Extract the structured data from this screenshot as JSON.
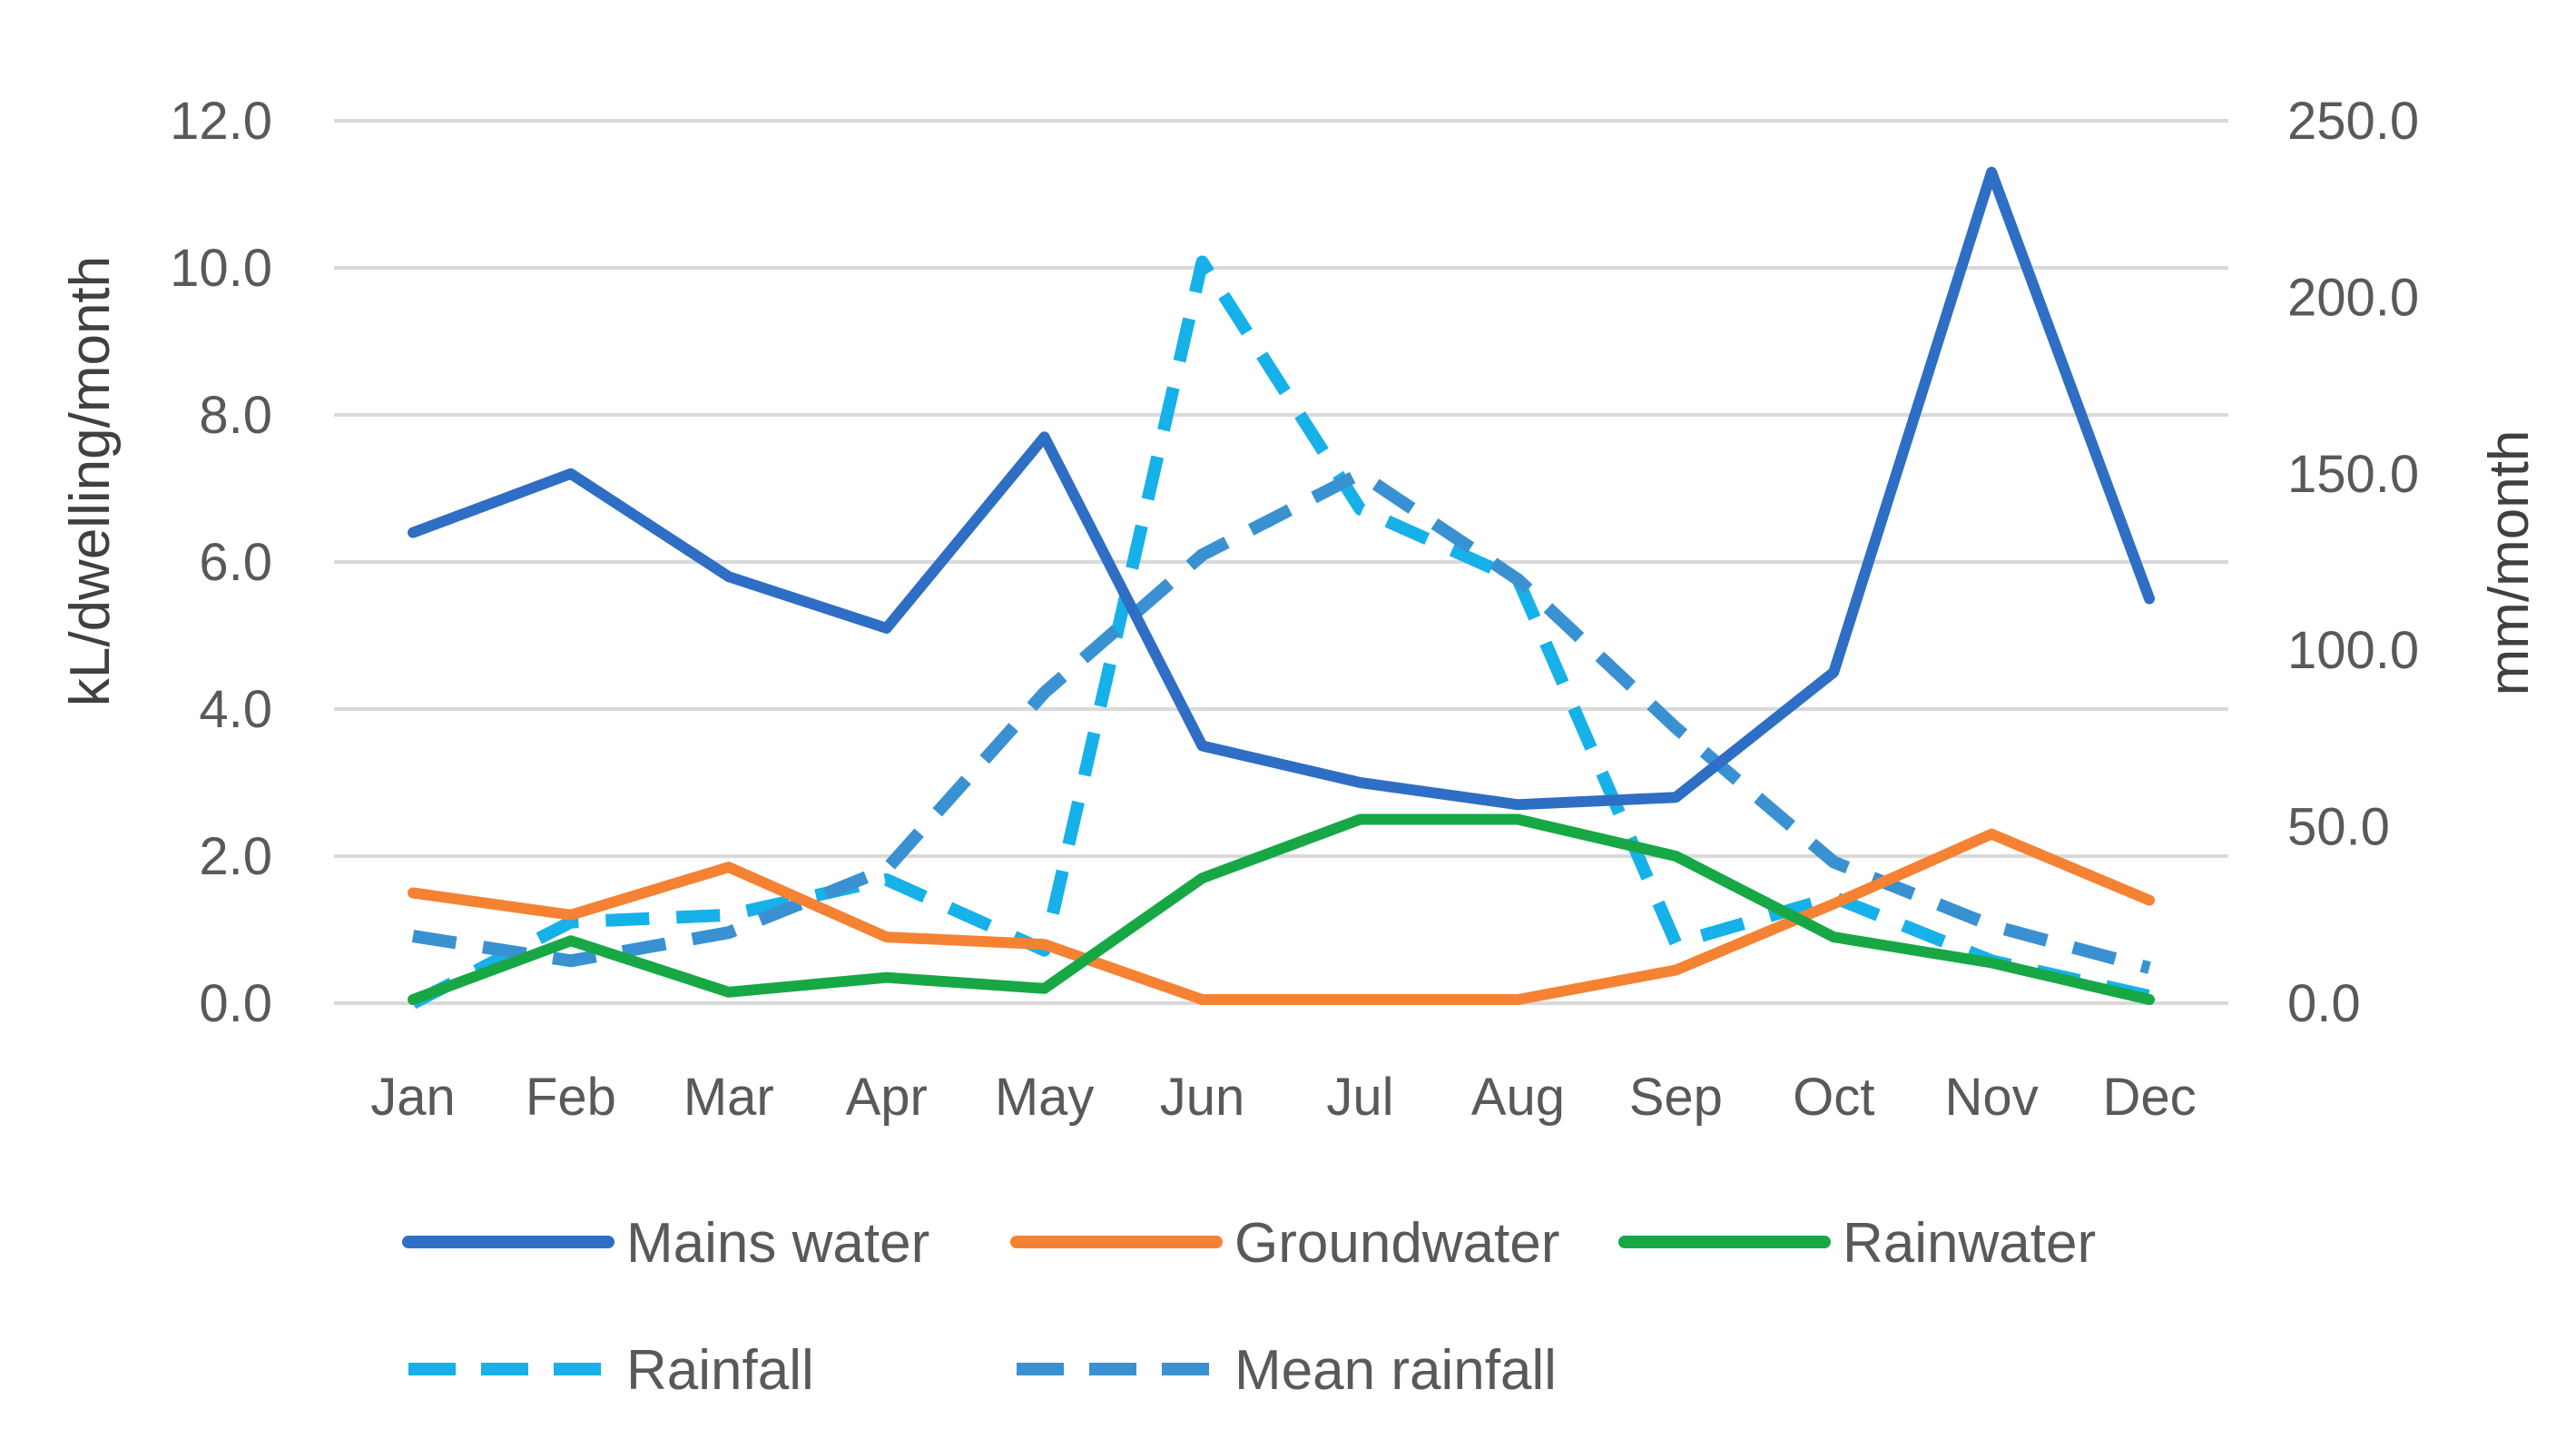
{
  "chart_data": {
    "type": "line",
    "title": "",
    "categories": [
      "Jan",
      "Feb",
      "Mar",
      "Apr",
      "May",
      "Jun",
      "Jul",
      "Aug",
      "Sep",
      "Oct",
      "Nov",
      "Dec"
    ],
    "y_left": {
      "label": "kL/dwelling/month",
      "ylim": [
        0,
        12
      ],
      "ticks": [
        "0.0",
        "2.0",
        "4.0",
        "6.0",
        "8.0",
        "10.0",
        "12.0"
      ]
    },
    "y_right": {
      "label": "mm/month",
      "ylim": [
        0,
        250
      ],
      "ticks": [
        "0.0",
        "50.0",
        "100.0",
        "150.0",
        "200.0",
        "250.0"
      ]
    },
    "grid": true,
    "legend_position": "bottom",
    "series": [
      {
        "name": "Mains water",
        "axis": "left",
        "style": "solid",
        "color": "#2e6ec4",
        "values": [
          6.4,
          7.2,
          5.8,
          5.1,
          7.7,
          3.5,
          3.0,
          2.7,
          2.8,
          4.5,
          11.3,
          5.5
        ]
      },
      {
        "name": "Groundwater",
        "axis": "left",
        "style": "solid",
        "color": "#f58233",
        "values": [
          1.5,
          1.2,
          1.85,
          0.9,
          0.8,
          0.05,
          0.05,
          0.05,
          0.45,
          1.35,
          2.3,
          1.4
        ]
      },
      {
        "name": "Rainwater",
        "axis": "left",
        "style": "solid",
        "color": "#17a845",
        "values": [
          0.05,
          0.85,
          0.15,
          0.35,
          0.2,
          1.7,
          2.5,
          2.5,
          2.0,
          0.9,
          0.55,
          0.05
        ]
      },
      {
        "name": "Rainfall",
        "axis": "right",
        "style": "dashed",
        "color": "#16b1e8",
        "values": [
          0,
          23,
          25,
          35,
          15,
          210,
          140,
          120,
          17,
          30,
          12,
          2
        ]
      },
      {
        "name": "Mean rainfall",
        "axis": "right",
        "style": "dashed",
        "color": "#3a91d2",
        "values": [
          19,
          12,
          20,
          38,
          88,
          127,
          150,
          120,
          78,
          40,
          22,
          10
        ]
      }
    ]
  }
}
